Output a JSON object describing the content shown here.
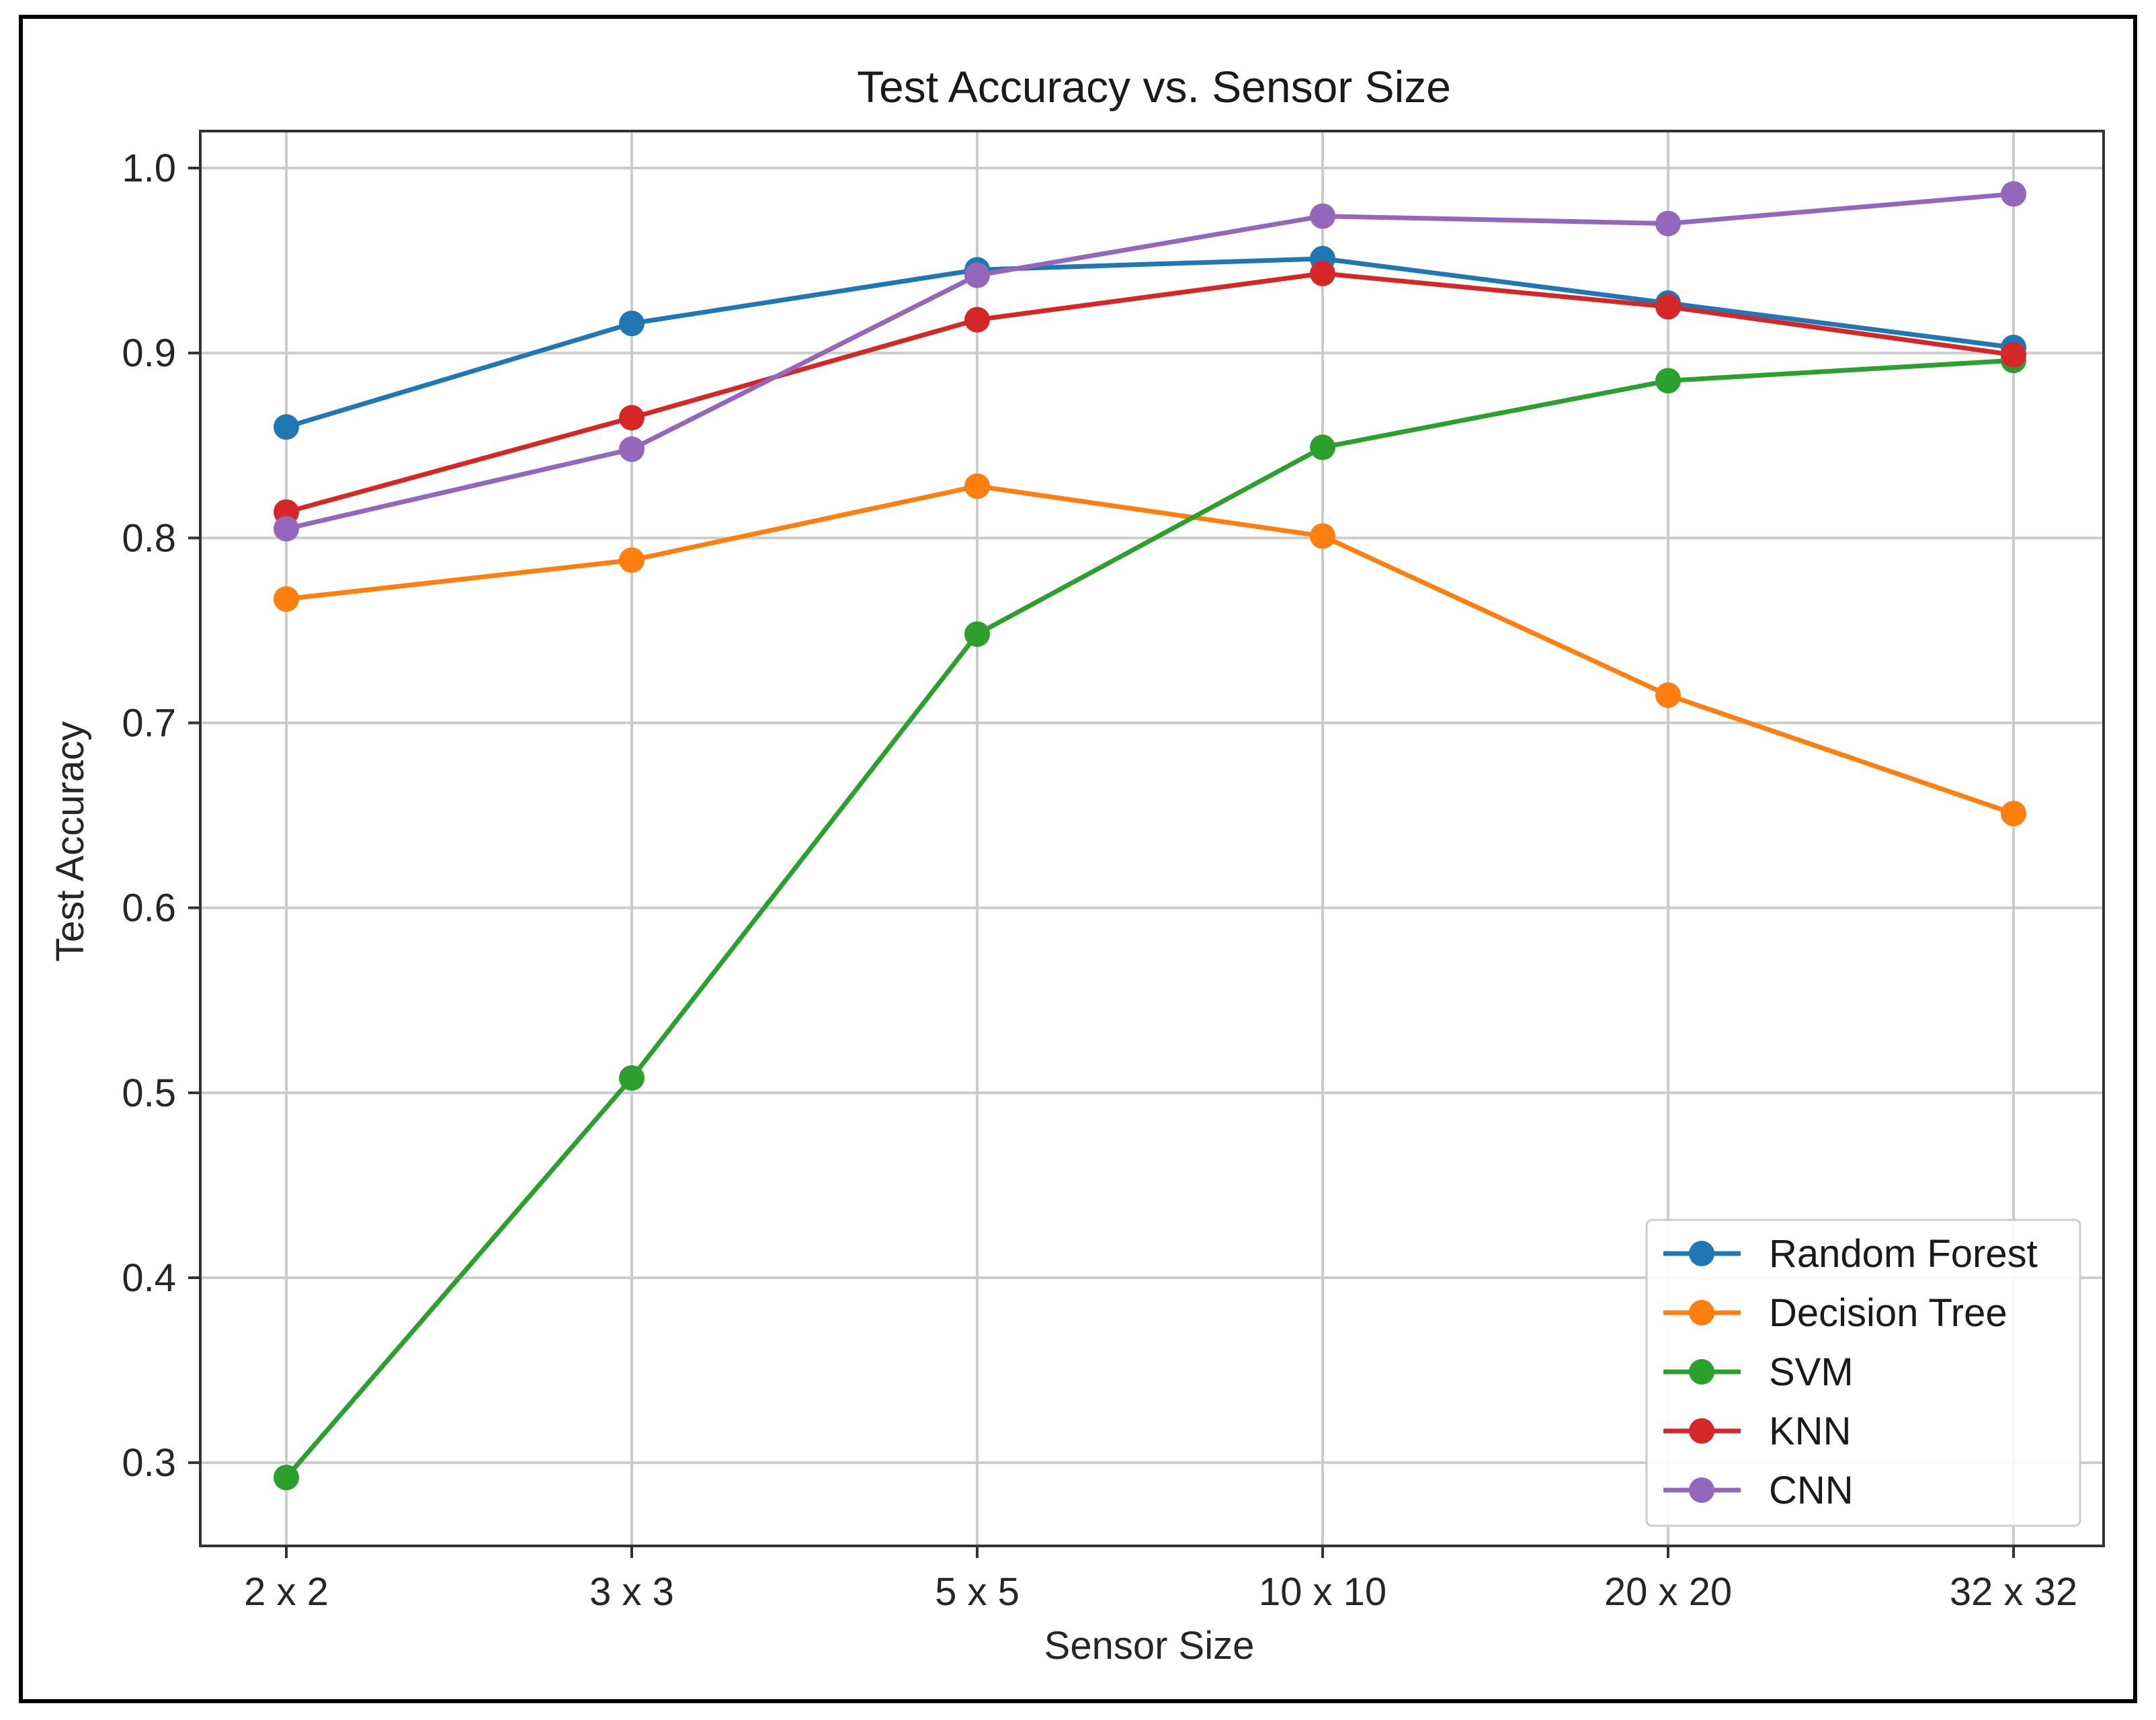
{
  "chart_data": {
    "type": "line",
    "title": "Test Accuracy vs. Sensor Size",
    "xlabel": "Sensor Size",
    "ylabel": "Test Accuracy",
    "categories": [
      "2 x 2",
      "3 x 3",
      "5 x 5",
      "10 x 10",
      "20 x 20",
      "32 x 32"
    ],
    "ylim": [
      0.255,
      1.02
    ],
    "yticks": [
      "0.3",
      "0.4",
      "0.5",
      "0.6",
      "0.7",
      "0.8",
      "0.9",
      "1.0"
    ],
    "grid": true,
    "legend_position": "lower-right",
    "series": [
      {
        "name": "Random Forest",
        "color": "#1f77b4",
        "values": [
          0.86,
          0.916,
          0.945,
          0.951,
          0.927,
          0.903
        ]
      },
      {
        "name": "Decision Tree",
        "color": "#ff7f0e",
        "values": [
          0.767,
          0.788,
          0.828,
          0.801,
          0.715,
          0.651
        ]
      },
      {
        "name": "SVM",
        "color": "#2ca02c",
        "values": [
          0.292,
          0.508,
          0.748,
          0.849,
          0.885,
          0.896
        ]
      },
      {
        "name": "KNN",
        "color": "#d62728",
        "values": [
          0.814,
          0.865,
          0.918,
          0.943,
          0.925,
          0.899
        ]
      },
      {
        "name": "CNN",
        "color": "#9467bd",
        "values": [
          0.805,
          0.848,
          0.942,
          0.974,
          0.97,
          0.986
        ]
      }
    ]
  }
}
